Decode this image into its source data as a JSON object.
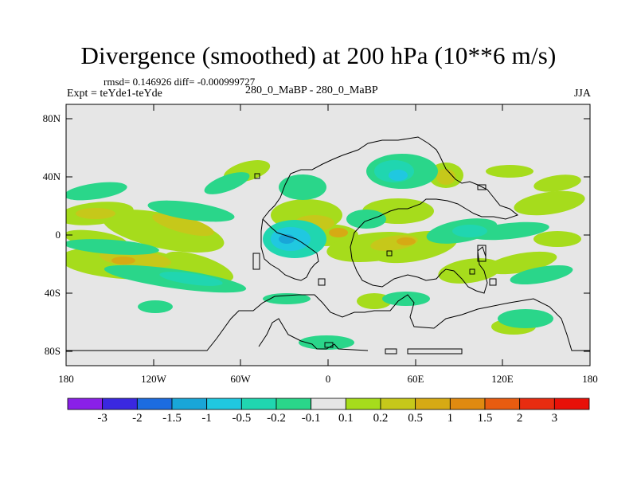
{
  "title": "Divergence (smoothed) at 200 hPa (10**6 m/s)",
  "stats": "rmsd= 0.146926 diff= -0.000999727",
  "expt": "Expt = teYde1-teYde",
  "case": "280_0_MaBP - 280_0_MaBP",
  "season": "JJA",
  "lat_labels": [
    "80N",
    "40N",
    "0",
    "40S",
    "80S"
  ],
  "lon_labels": [
    "180",
    "120W",
    "60W",
    "0",
    "60E",
    "120E",
    "180"
  ],
  "colorbar": {
    "labels": [
      "-3",
      "-2",
      "-1.5",
      "-1",
      "-0.5",
      "-0.2",
      "-0.1",
      "0.1",
      "0.2",
      "0.5",
      "1",
      "1.5",
      "2",
      "3"
    ],
    "colors": [
      "#8a20e8",
      "#3a28e0",
      "#1c6ce0",
      "#19a6d8",
      "#20c8e0",
      "#20d6b0",
      "#2ad68a",
      "#e6e6e6",
      "#a6dc1c",
      "#c6c81a",
      "#d6aa14",
      "#e08a10",
      "#e85c10",
      "#e82c10",
      "#e81008"
    ]
  },
  "chart_data": {
    "type": "heatmap",
    "title": "Divergence (smoothed) at 200 hPa (10**6 m/s)",
    "units": "10**6 m/s",
    "level_hPa": 200,
    "season": "JJA",
    "x_range": [
      -180,
      180
    ],
    "y_range": [
      -90,
      90
    ],
    "contour_levels": [
      -3,
      -2,
      -1.5,
      -1,
      -0.5,
      -0.2,
      -0.1,
      0.1,
      0.2,
      0.5,
      1,
      1.5,
      2,
      3
    ],
    "rmsd": 0.146926,
    "diff": -0.000999727
  }
}
